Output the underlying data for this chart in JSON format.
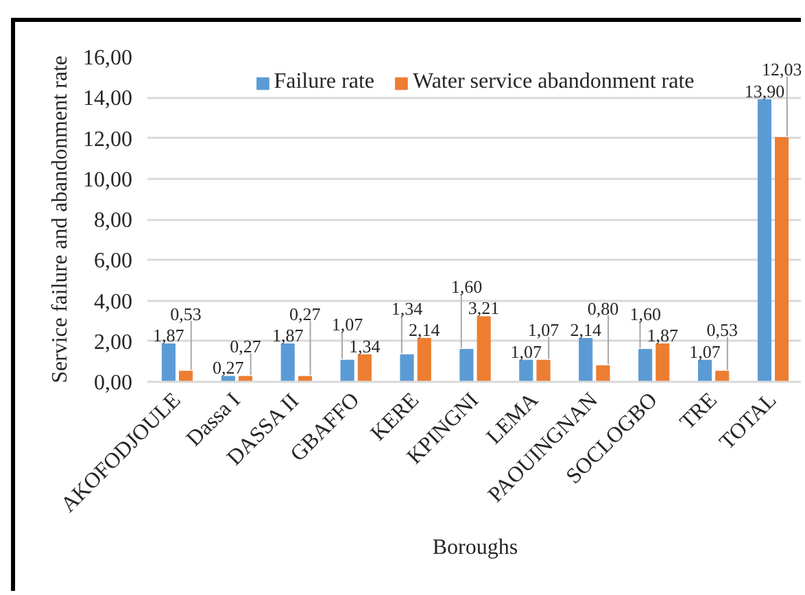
{
  "chart_data": {
    "type": "bar",
    "xlabel": "Boroughs",
    "ylabel": "Service failure and abandonment rate",
    "categories": [
      "AKOFODJOULE",
      "Dassa I",
      "DASSA II",
      "GBAFFO",
      "KERE",
      "KPINGNI",
      "LEMA",
      "PAOUINGNAN",
      "SOCLOGBO",
      "TRE",
      "TOTAL"
    ],
    "series": [
      {
        "name": "Failure rate",
        "color": "#5b9bd5",
        "values": [
          1.87,
          0.27,
          1.87,
          1.07,
          1.34,
          1.6,
          1.07,
          2.14,
          1.6,
          1.07,
          13.9
        ],
        "value_labels": [
          "1,87",
          "0,27",
          "1,87",
          "1,07",
          "1,34",
          "1,60",
          "1,07",
          "2,14",
          "1,60",
          "1,07",
          "13,90"
        ]
      },
      {
        "name": "Water service abandonment rate",
        "color": "#ed7d31",
        "values": [
          0.53,
          0.27,
          0.27,
          1.34,
          2.14,
          3.21,
          1.07,
          0.8,
          1.87,
          0.53,
          12.03
        ],
        "value_labels": [
          "0,53",
          "0,27",
          "0,27",
          "1,34",
          "2,14",
          "3,21",
          "1,07",
          "0,80",
          "1,87",
          "0,53",
          "12,03"
        ]
      }
    ],
    "ylim": [
      0,
      16
    ],
    "yticks": [
      {
        "value": 0,
        "label": "0,00"
      },
      {
        "value": 2,
        "label": "2,00"
      },
      {
        "value": 4,
        "label": "4,00"
      },
      {
        "value": 6,
        "label": "6,00"
      },
      {
        "value": 8,
        "label": "8,00"
      },
      {
        "value": 10,
        "label": "10,00"
      },
      {
        "value": 12,
        "label": "12,00"
      },
      {
        "value": 14,
        "label": "14,00"
      },
      {
        "value": 16,
        "label": "16,00"
      }
    ],
    "grid": "y",
    "legend": "top"
  }
}
